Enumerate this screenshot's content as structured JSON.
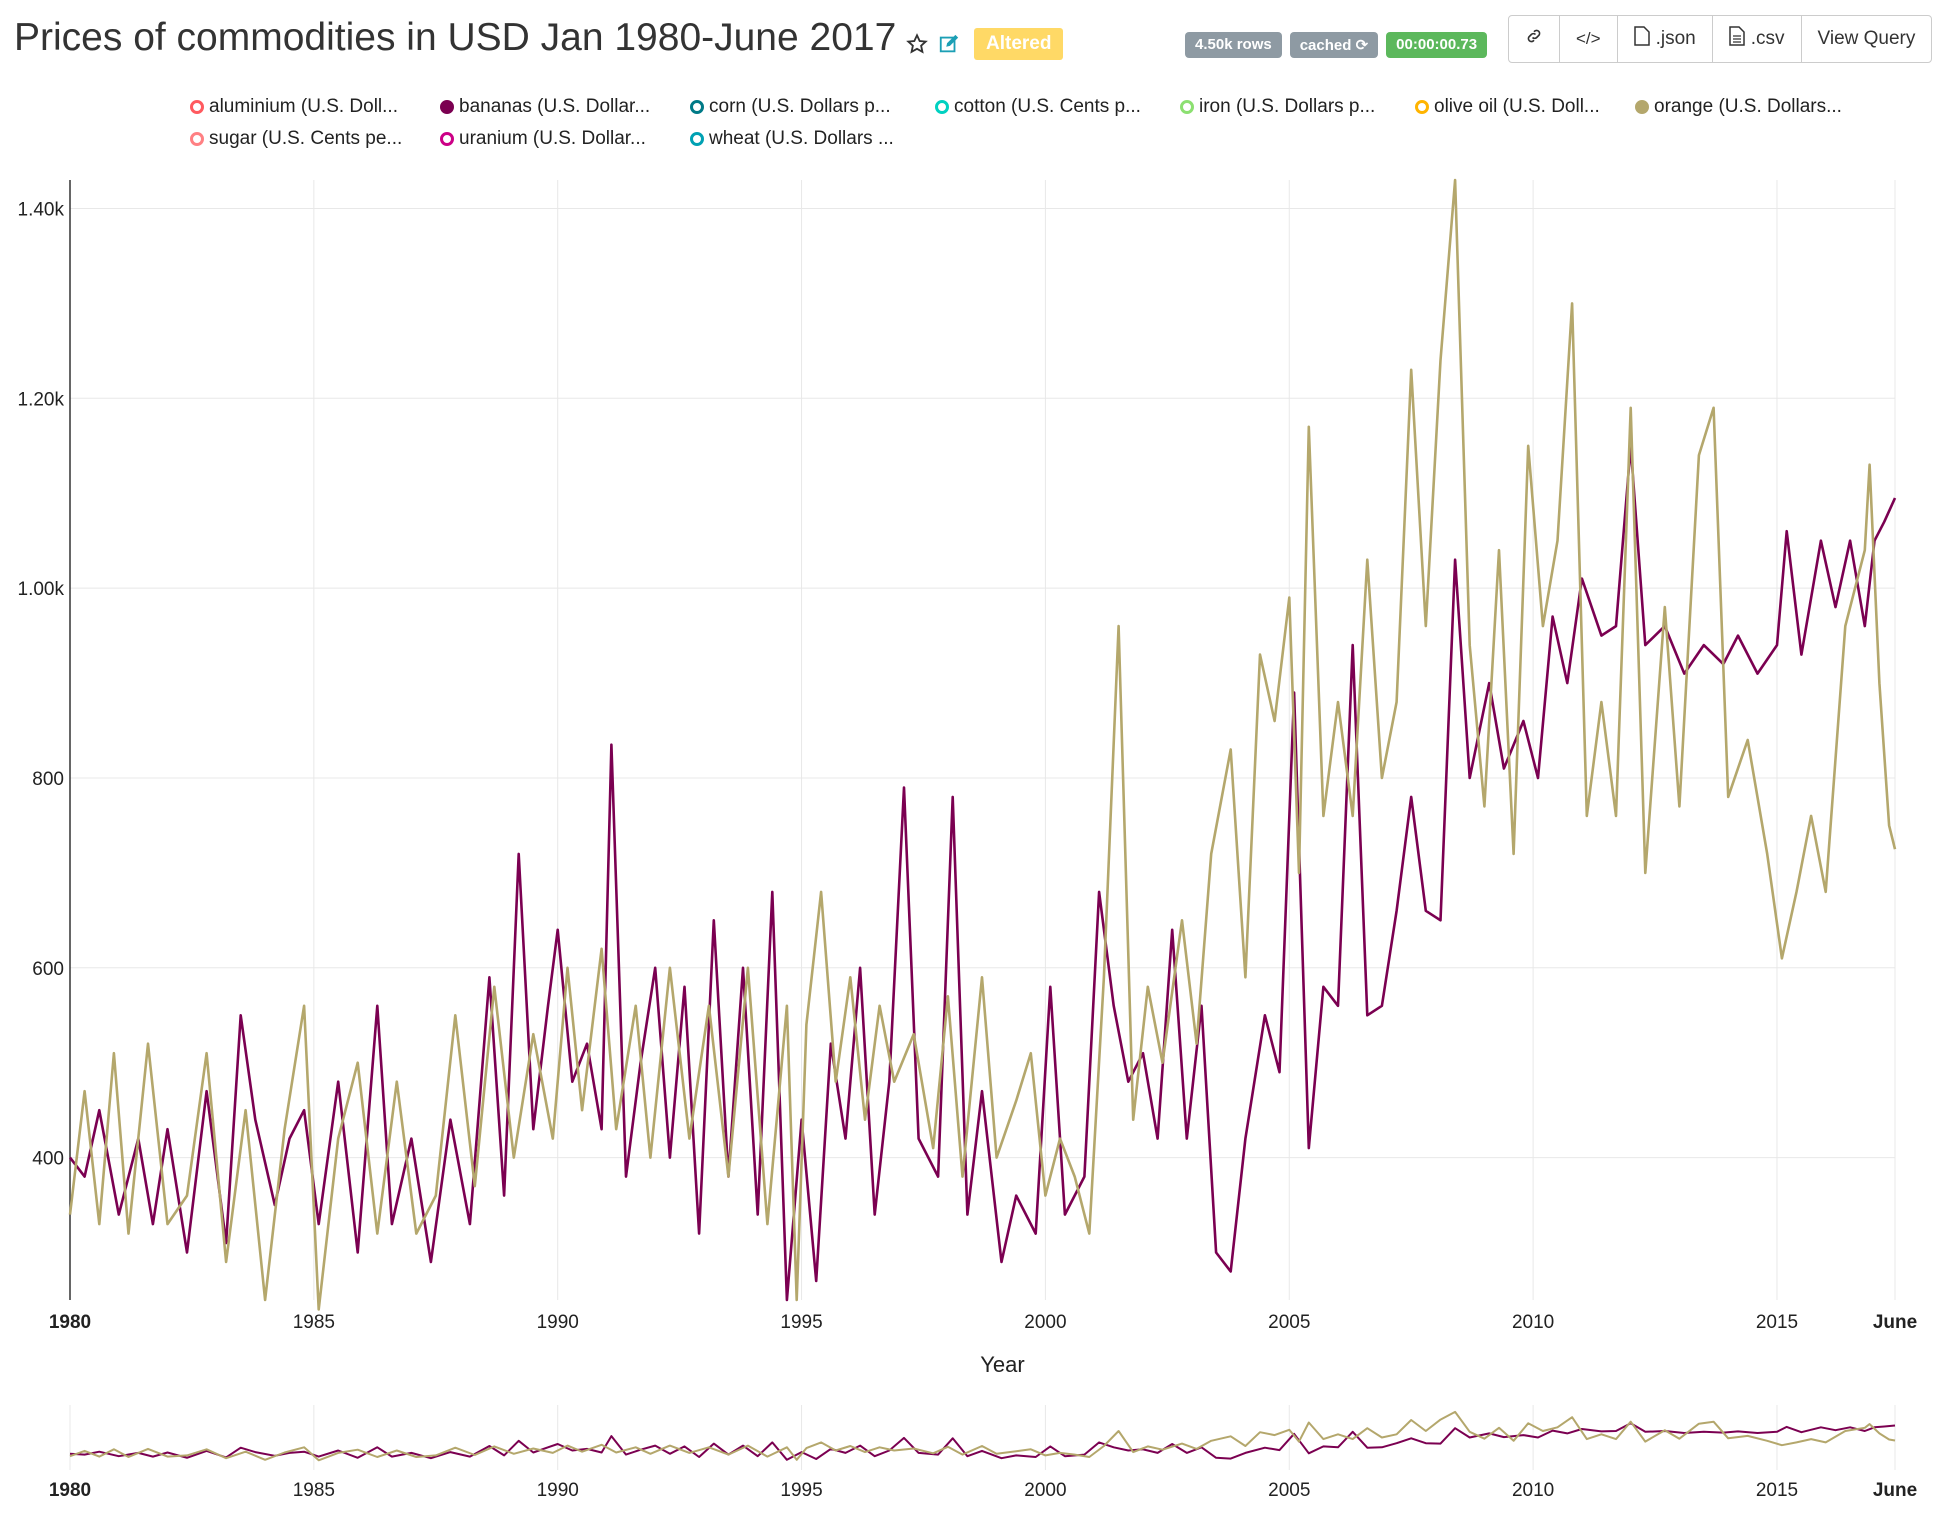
{
  "header": {
    "title": "Prices of commodities in USD Jan 1980-June 2017",
    "star_icon": "star-icon",
    "edit_icon": "edit-icon",
    "altered_label": "Altered"
  },
  "status": {
    "rows": "4.50k rows",
    "cached": "cached",
    "time": "00:00:00.73"
  },
  "toolbar": {
    "link_icon": "link-icon",
    "embed_icon": "code-icon",
    "json_label": ".json",
    "csv_label": ".csv",
    "view_query_label": "View Query"
  },
  "legend": [
    {
      "label": "aluminium (U.S. Doll...",
      "color": "#ff5a5f",
      "filled": false
    },
    {
      "label": "bananas (U.S. Dollar...",
      "color": "#7b0051",
      "filled": true
    },
    {
      "label": "corn (U.S. Dollars p...",
      "color": "#007a87",
      "filled": false
    },
    {
      "label": "cotton (U.S. Cents p...",
      "color": "#00d1c1",
      "filled": false
    },
    {
      "label": "iron (U.S. Dollars p...",
      "color": "#8ce071",
      "filled": false
    },
    {
      "label": "olive oil (U.S. Doll...",
      "color": "#ffb400",
      "filled": false
    },
    {
      "label": "orange (U.S. Dollars...",
      "color": "#b4a76c",
      "filled": true
    },
    {
      "label": "sugar (U.S. Cents pe...",
      "color": "#ff8083",
      "filled": false
    },
    {
      "label": "uranium (U.S. Dollar...",
      "color": "#cc0086",
      "filled": false
    },
    {
      "label": "wheat (U.S. Dollars ...",
      "color": "#00a1b3",
      "filled": false
    }
  ],
  "chart_data": {
    "type": "line",
    "title": "Prices of commodities in USD Jan 1980-June 2017",
    "xlabel": "Year",
    "ylabel": "",
    "xlim": [
      1980.0,
      2017.42
    ],
    "ylim": [
      250,
      1430
    ],
    "x_ticks": [
      "1980",
      "1985",
      "1990",
      "1995",
      "2000",
      "2005",
      "2010",
      "2015",
      "June"
    ],
    "y_ticks": [
      "400",
      "600",
      "800",
      "1.00k",
      "1.20k",
      "1.40k"
    ],
    "grid": true,
    "legend_position": "top",
    "series": [
      {
        "name": "bananas (U.S. Dollar...",
        "color": "#7b0051",
        "points": [
          [
            1980.0,
            400
          ],
          [
            1980.3,
            380
          ],
          [
            1980.6,
            450
          ],
          [
            1981.0,
            340
          ],
          [
            1981.4,
            420
          ],
          [
            1981.7,
            330
          ],
          [
            1982.0,
            430
          ],
          [
            1982.4,
            300
          ],
          [
            1982.8,
            470
          ],
          [
            1983.2,
            310
          ],
          [
            1983.5,
            550
          ],
          [
            1983.8,
            440
          ],
          [
            1984.2,
            350
          ],
          [
            1984.5,
            420
          ],
          [
            1984.8,
            450
          ],
          [
            1985.1,
            330
          ],
          [
            1985.5,
            480
          ],
          [
            1985.9,
            300
          ],
          [
            1986.3,
            560
          ],
          [
            1986.6,
            330
          ],
          [
            1987.0,
            420
          ],
          [
            1987.4,
            290
          ],
          [
            1987.8,
            440
          ],
          [
            1988.2,
            330
          ],
          [
            1988.6,
            590
          ],
          [
            1988.9,
            360
          ],
          [
            1989.2,
            720
          ],
          [
            1989.5,
            430
          ],
          [
            1989.8,
            560
          ],
          [
            1990.0,
            640
          ],
          [
            1990.3,
            480
          ],
          [
            1990.6,
            520
          ],
          [
            1990.9,
            430
          ],
          [
            1991.1,
            835
          ],
          [
            1991.4,
            380
          ],
          [
            1991.7,
            500
          ],
          [
            1992.0,
            600
          ],
          [
            1992.3,
            400
          ],
          [
            1992.6,
            580
          ],
          [
            1992.9,
            320
          ],
          [
            1993.2,
            650
          ],
          [
            1993.5,
            380
          ],
          [
            1993.8,
            600
          ],
          [
            1994.1,
            340
          ],
          [
            1994.4,
            680
          ],
          [
            1994.7,
            250
          ],
          [
            1995.0,
            440
          ],
          [
            1995.3,
            270
          ],
          [
            1995.6,
            520
          ],
          [
            1995.9,
            420
          ],
          [
            1996.2,
            600
          ],
          [
            1996.5,
            340
          ],
          [
            1996.8,
            480
          ],
          [
            1997.1,
            790
          ],
          [
            1997.4,
            420
          ],
          [
            1997.8,
            380
          ],
          [
            1998.1,
            780
          ],
          [
            1998.4,
            340
          ],
          [
            1998.7,
            470
          ],
          [
            1999.1,
            290
          ],
          [
            1999.4,
            360
          ],
          [
            1999.8,
            320
          ],
          [
            2000.1,
            580
          ],
          [
            2000.4,
            340
          ],
          [
            2000.8,
            380
          ],
          [
            2001.1,
            680
          ],
          [
            2001.4,
            560
          ],
          [
            2001.7,
            480
          ],
          [
            2002.0,
            510
          ],
          [
            2002.3,
            420
          ],
          [
            2002.6,
            640
          ],
          [
            2002.9,
            420
          ],
          [
            2003.2,
            560
          ],
          [
            2003.5,
            300
          ],
          [
            2003.8,
            280
          ],
          [
            2004.1,
            420
          ],
          [
            2004.5,
            550
          ],
          [
            2004.8,
            490
          ],
          [
            2005.1,
            890
          ],
          [
            2005.4,
            410
          ],
          [
            2005.7,
            580
          ],
          [
            2006.0,
            560
          ],
          [
            2006.3,
            940
          ],
          [
            2006.6,
            550
          ],
          [
            2006.9,
            560
          ],
          [
            2007.2,
            660
          ],
          [
            2007.5,
            780
          ],
          [
            2007.8,
            660
          ],
          [
            2008.1,
            650
          ],
          [
            2008.4,
            1030
          ],
          [
            2008.7,
            800
          ],
          [
            2009.1,
            900
          ],
          [
            2009.4,
            810
          ],
          [
            2009.8,
            860
          ],
          [
            2010.1,
            800
          ],
          [
            2010.4,
            970
          ],
          [
            2010.7,
            900
          ],
          [
            2011.0,
            1010
          ],
          [
            2011.4,
            950
          ],
          [
            2011.7,
            960
          ],
          [
            2012.0,
            1150
          ],
          [
            2012.3,
            940
          ],
          [
            2012.7,
            960
          ],
          [
            2013.1,
            910
          ],
          [
            2013.5,
            940
          ],
          [
            2013.9,
            920
          ],
          [
            2014.2,
            950
          ],
          [
            2014.6,
            910
          ],
          [
            2015.0,
            940
          ],
          [
            2015.2,
            1060
          ],
          [
            2015.5,
            930
          ],
          [
            2015.9,
            1050
          ],
          [
            2016.2,
            980
          ],
          [
            2016.5,
            1050
          ],
          [
            2016.8,
            960
          ],
          [
            2017.0,
            1050
          ],
          [
            2017.2,
            1070
          ],
          [
            2017.42,
            1095
          ]
        ]
      },
      {
        "name": "orange (U.S. Dollars...",
        "color": "#b4a76c",
        "points": [
          [
            1980.0,
            340
          ],
          [
            1980.3,
            470
          ],
          [
            1980.6,
            330
          ],
          [
            1980.9,
            510
          ],
          [
            1981.2,
            320
          ],
          [
            1981.6,
            520
          ],
          [
            1982.0,
            330
          ],
          [
            1982.4,
            360
          ],
          [
            1982.8,
            510
          ],
          [
            1983.2,
            290
          ],
          [
            1983.6,
            450
          ],
          [
            1984.0,
            250
          ],
          [
            1984.4,
            430
          ],
          [
            1984.8,
            560
          ],
          [
            1985.1,
            240
          ],
          [
            1985.5,
            420
          ],
          [
            1985.9,
            500
          ],
          [
            1986.3,
            320
          ],
          [
            1986.7,
            480
          ],
          [
            1987.1,
            320
          ],
          [
            1987.5,
            360
          ],
          [
            1987.9,
            550
          ],
          [
            1988.3,
            370
          ],
          [
            1988.7,
            580
          ],
          [
            1989.1,
            400
          ],
          [
            1989.5,
            530
          ],
          [
            1989.9,
            420
          ],
          [
            1990.2,
            600
          ],
          [
            1990.5,
            450
          ],
          [
            1990.9,
            620
          ],
          [
            1991.2,
            430
          ],
          [
            1991.6,
            560
          ],
          [
            1991.9,
            400
          ],
          [
            1992.3,
            600
          ],
          [
            1992.7,
            420
          ],
          [
            1993.1,
            560
          ],
          [
            1993.5,
            380
          ],
          [
            1993.9,
            600
          ],
          [
            1994.3,
            330
          ],
          [
            1994.7,
            560
          ],
          [
            1994.9,
            250
          ],
          [
            1995.1,
            540
          ],
          [
            1995.4,
            680
          ],
          [
            1995.7,
            480
          ],
          [
            1996.0,
            590
          ],
          [
            1996.3,
            440
          ],
          [
            1996.6,
            560
          ],
          [
            1996.9,
            480
          ],
          [
            1997.3,
            530
          ],
          [
            1997.7,
            410
          ],
          [
            1998.0,
            570
          ],
          [
            1998.3,
            380
          ],
          [
            1998.7,
            590
          ],
          [
            1999.0,
            400
          ],
          [
            1999.4,
            460
          ],
          [
            1999.7,
            510
          ],
          [
            2000.0,
            360
          ],
          [
            2000.3,
            420
          ],
          [
            2000.6,
            380
          ],
          [
            2000.9,
            320
          ],
          [
            2001.2,
            590
          ],
          [
            2001.5,
            960
          ],
          [
            2001.8,
            440
          ],
          [
            2002.1,
            580
          ],
          [
            2002.4,
            500
          ],
          [
            2002.8,
            650
          ],
          [
            2003.1,
            520
          ],
          [
            2003.4,
            720
          ],
          [
            2003.8,
            830
          ],
          [
            2004.1,
            590
          ],
          [
            2004.4,
            930
          ],
          [
            2004.7,
            860
          ],
          [
            2005.0,
            990
          ],
          [
            2005.2,
            700
          ],
          [
            2005.4,
            1170
          ],
          [
            2005.7,
            760
          ],
          [
            2006.0,
            880
          ],
          [
            2006.3,
            760
          ],
          [
            2006.6,
            1030
          ],
          [
            2006.9,
            800
          ],
          [
            2007.2,
            880
          ],
          [
            2007.5,
            1230
          ],
          [
            2007.8,
            960
          ],
          [
            2008.1,
            1240
          ],
          [
            2008.4,
            1430
          ],
          [
            2008.7,
            940
          ],
          [
            2009.0,
            770
          ],
          [
            2009.3,
            1040
          ],
          [
            2009.6,
            720
          ],
          [
            2009.9,
            1150
          ],
          [
            2010.2,
            960
          ],
          [
            2010.5,
            1050
          ],
          [
            2010.8,
            1300
          ],
          [
            2011.1,
            760
          ],
          [
            2011.4,
            880
          ],
          [
            2011.7,
            760
          ],
          [
            2012.0,
            1190
          ],
          [
            2012.3,
            700
          ],
          [
            2012.7,
            980
          ],
          [
            2013.0,
            770
          ],
          [
            2013.4,
            1140
          ],
          [
            2013.7,
            1190
          ],
          [
            2014.0,
            780
          ],
          [
            2014.4,
            840
          ],
          [
            2014.8,
            720
          ],
          [
            2015.1,
            610
          ],
          [
            2015.4,
            680
          ],
          [
            2015.7,
            760
          ],
          [
            2016.0,
            680
          ],
          [
            2016.4,
            960
          ],
          [
            2016.8,
            1040
          ],
          [
            2016.9,
            1130
          ],
          [
            2017.1,
            900
          ],
          [
            2017.3,
            750
          ],
          [
            2017.42,
            725
          ]
        ]
      }
    ]
  },
  "brush": {
    "x_ticks": [
      "1980",
      "1985",
      "1990",
      "1995",
      "2000",
      "2005",
      "2010",
      "2015",
      "June"
    ]
  }
}
